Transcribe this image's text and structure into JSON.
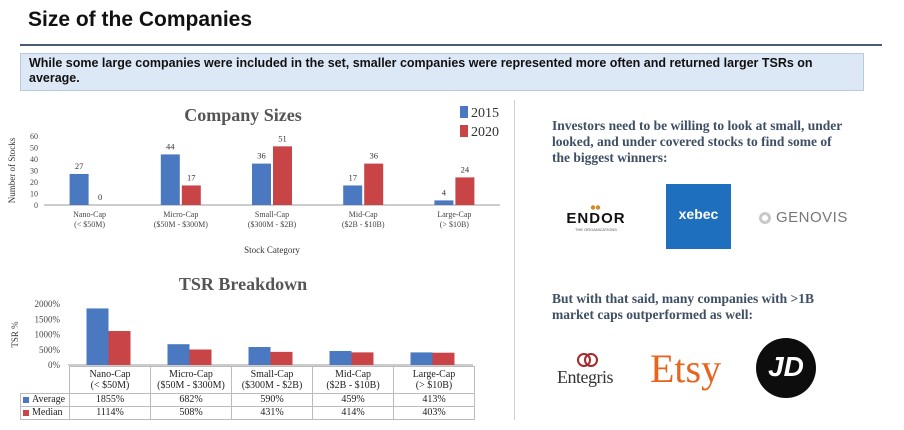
{
  "page": {
    "title": "Size of the Companies",
    "banner": "While some large companies were included in the set, smaller companies were represented more often and returned larger TSRs on average."
  },
  "colors": {
    "blue": "#4a79c2",
    "red": "#c94447"
  },
  "chart_data": [
    {
      "type": "bar",
      "title": "Company Sizes",
      "xlabel": "Stock Category",
      "ylabel": "Number of Stocks",
      "ylim": [
        0,
        60
      ],
      "yticks": [
        "0",
        "10",
        "20",
        "30",
        "40",
        "50",
        "60"
      ],
      "categories": [
        [
          "Nano-Cap",
          "(< $50M)"
        ],
        [
          "Micro-Cap",
          "($50M - $300M)"
        ],
        [
          "Small-Cap",
          "($300M - $2B)"
        ],
        [
          "Mid-Cap",
          "($2B - $10B)"
        ],
        [
          "Large-Cap",
          "(> $10B)"
        ]
      ],
      "series": [
        {
          "name": "2015",
          "values": [
            27,
            44,
            36,
            17,
            4
          ]
        },
        {
          "name": "2020",
          "values": [
            0,
            17,
            51,
            36,
            24
          ]
        }
      ],
      "legend": "top-right",
      "data_labels": true
    },
    {
      "type": "bar",
      "title": "TSR Breakdown",
      "ylabel": "TSR %",
      "ylim": [
        0,
        2000
      ],
      "yticks": [
        "0%",
        "500%",
        "1000%",
        "1500%",
        "2000%"
      ],
      "categories": [
        [
          "Nano-Cap",
          "(< $50M)"
        ],
        [
          "Micro-Cap",
          "($50M - $300M)"
        ],
        [
          "Small-Cap",
          "($300M - $2B)"
        ],
        [
          "Mid-Cap",
          "($2B - $10B)"
        ],
        [
          "Large-Cap",
          "(> $10B)"
        ]
      ],
      "series": [
        {
          "name": "Average",
          "values": [
            1855,
            682,
            590,
            459,
            413
          ],
          "labels": [
            "1855%",
            "682%",
            "590%",
            "459%",
            "413%"
          ]
        },
        {
          "name": "Median",
          "values": [
            1114,
            508,
            431,
            414,
            403
          ],
          "labels": [
            "1114%",
            "508%",
            "431%",
            "414%",
            "403%"
          ]
        }
      ],
      "legend": "data-table"
    }
  ],
  "right": {
    "blurb1": "Investors need to be willing to look at small, under looked, and under covered stocks to find some of the biggest winners:",
    "blurb2": "But with that said, many companies with >1B market caps outperformed as well:",
    "logos_row1": {
      "endor": "ENDOR",
      "endor_sub": "THE ORGANIZATIONS",
      "xebec": "xebec",
      "genovis": "GENOVIS"
    },
    "logos_row2": {
      "entegris": "Entegris",
      "etsy": "Etsy",
      "jd": "JD"
    }
  }
}
